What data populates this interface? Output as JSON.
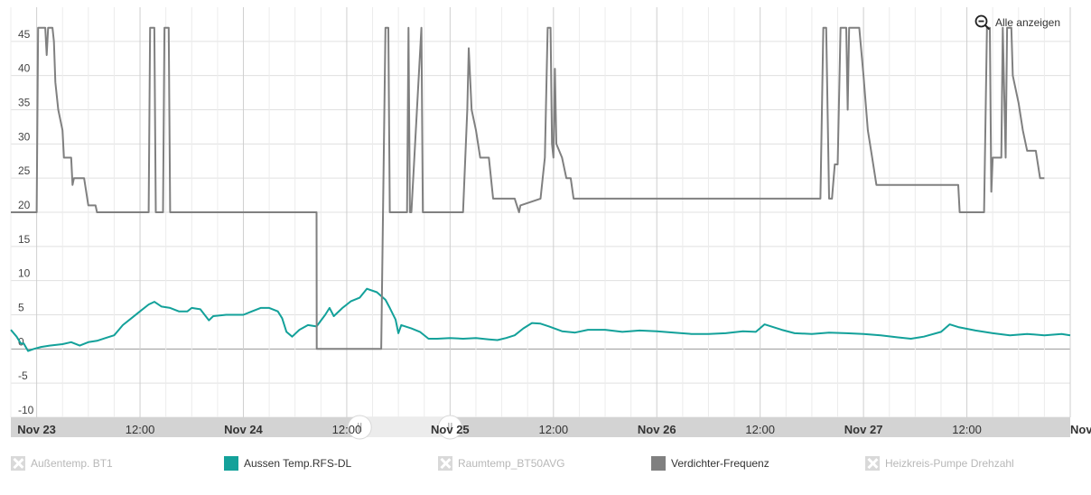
{
  "reset_zoom_label": "Alle anzeigen",
  "chart_data": {
    "type": "line",
    "title": "",
    "xlabel": "",
    "ylabel": "",
    "x_range": [
      "2022-11-22T21:00",
      "2022-11-28T00:00"
    ],
    "ylim": [
      -10,
      50
    ],
    "y_ticks": [
      -10,
      -5,
      0,
      5,
      10,
      15,
      20,
      25,
      30,
      35,
      40,
      45
    ],
    "y_tick_labels": [
      "-10",
      "-5",
      "0",
      "5",
      "10",
      "15",
      "20",
      "25",
      "30",
      "35",
      "40",
      "45"
    ],
    "x_ticks": [
      "2022-11-23T00:00",
      "2022-11-23T12:00",
      "2022-11-24T00:00",
      "2022-11-24T12:00",
      "2022-11-25T00:00",
      "2022-11-25T12:00",
      "2022-11-26T00:00",
      "2022-11-26T12:00",
      "2022-11-27T00:00",
      "2022-11-27T12:00",
      "2022-11-28T00:00"
    ],
    "x_tick_labels": [
      "Nov 23",
      "12:00",
      "Nov 24",
      "12:00",
      "Nov 25",
      "12:00",
      "Nov 26",
      "12:00",
      "Nov 27",
      "12:00",
      "Nov"
    ],
    "x_tick_bold": [
      true,
      false,
      true,
      false,
      true,
      false,
      true,
      false,
      true,
      false,
      true
    ],
    "grid": true,
    "legend_position": "bottom",
    "navigator_selection": [
      "2022-11-24T13:30",
      "2022-11-25T00:00"
    ],
    "series": [
      {
        "name": "Außentemp. BT1",
        "visible": false,
        "color": "#cccccc",
        "points": []
      },
      {
        "name": "Aussen Temp.RFS-DL",
        "visible": true,
        "color": "#13a19a",
        "points": [
          [
            "2022-11-22T21:00",
            2.8
          ],
          [
            "2022-11-22T21:40",
            1.8
          ],
          [
            "2022-11-22T22:10",
            0.8
          ],
          [
            "2022-11-22T22:30",
            0.8
          ],
          [
            "2022-11-22T23:00",
            -0.3
          ],
          [
            "2022-11-22T23:40",
            0.0
          ],
          [
            "2022-11-23T00:30",
            0.3
          ],
          [
            "2022-11-23T01:30",
            0.5
          ],
          [
            "2022-11-23T03:00",
            0.7
          ],
          [
            "2022-11-23T04:00",
            1.0
          ],
          [
            "2022-11-23T05:00",
            0.5
          ],
          [
            "2022-11-23T06:00",
            1.0
          ],
          [
            "2022-11-23T07:00",
            1.2
          ],
          [
            "2022-11-23T08:00",
            1.6
          ],
          [
            "2022-11-23T09:00",
            2.0
          ],
          [
            "2022-11-23T10:00",
            3.5
          ],
          [
            "2022-11-23T11:00",
            4.5
          ],
          [
            "2022-11-23T12:00",
            5.5
          ],
          [
            "2022-11-23T13:00",
            6.5
          ],
          [
            "2022-11-23T13:40",
            6.9
          ],
          [
            "2022-11-23T14:30",
            6.2
          ],
          [
            "2022-11-23T15:30",
            6.0
          ],
          [
            "2022-11-23T16:30",
            5.5
          ],
          [
            "2022-11-23T17:30",
            5.5
          ],
          [
            "2022-11-23T18:00",
            6.0
          ],
          [
            "2022-11-23T19:00",
            5.8
          ],
          [
            "2022-11-23T20:00",
            4.2
          ],
          [
            "2022-11-23T20:30",
            4.8
          ],
          [
            "2022-11-23T22:00",
            5.0
          ],
          [
            "2022-11-23T23:00",
            5.0
          ],
          [
            "2022-11-24T00:00",
            5.0
          ],
          [
            "2022-11-24T01:00",
            5.5
          ],
          [
            "2022-11-24T02:00",
            6.0
          ],
          [
            "2022-11-24T03:00",
            6.0
          ],
          [
            "2022-11-24T04:00",
            5.5
          ],
          [
            "2022-11-24T04:30",
            4.5
          ],
          [
            "2022-11-24T05:00",
            2.5
          ],
          [
            "2022-11-24T05:40",
            1.8
          ],
          [
            "2022-11-24T06:30",
            2.8
          ],
          [
            "2022-11-24T07:30",
            3.5
          ],
          [
            "2022-11-24T08:30",
            3.3
          ],
          [
            "2022-11-24T09:30",
            5.0
          ],
          [
            "2022-11-24T10:00",
            6.0
          ],
          [
            "2022-11-24T10:30",
            4.8
          ],
          [
            "2022-11-24T11:30",
            6.0
          ],
          [
            "2022-11-24T12:30",
            7.0
          ],
          [
            "2022-11-24T13:30",
            7.5
          ],
          [
            "2022-11-24T14:20",
            8.8
          ],
          [
            "2022-11-24T15:30",
            8.3
          ],
          [
            "2022-11-24T16:30",
            7.2
          ],
          [
            "2022-11-24T17:00",
            6.0
          ],
          [
            "2022-11-24T17:40",
            4.3
          ],
          [
            "2022-11-24T18:00",
            2.3
          ],
          [
            "2022-11-24T18:20",
            3.5
          ],
          [
            "2022-11-24T19:30",
            3.0
          ],
          [
            "2022-11-24T20:30",
            2.5
          ],
          [
            "2022-11-24T21:30",
            1.5
          ],
          [
            "2022-11-24T22:30",
            1.5
          ],
          [
            "2022-11-25T00:00",
            1.6
          ],
          [
            "2022-11-25T01:30",
            1.5
          ],
          [
            "2022-11-25T03:00",
            1.6
          ],
          [
            "2022-11-25T04:30",
            1.4
          ],
          [
            "2022-11-25T05:30",
            1.3
          ],
          [
            "2022-11-25T06:30",
            1.6
          ],
          [
            "2022-11-25T07:30",
            2.0
          ],
          [
            "2022-11-25T08:30",
            3.0
          ],
          [
            "2022-11-25T09:30",
            3.8
          ],
          [
            "2022-11-25T10:30",
            3.7
          ],
          [
            "2022-11-25T11:30",
            3.3
          ],
          [
            "2022-11-25T13:00",
            2.6
          ],
          [
            "2022-11-25T14:30",
            2.4
          ],
          [
            "2022-11-25T16:00",
            2.8
          ],
          [
            "2022-11-25T18:00",
            2.8
          ],
          [
            "2022-11-25T20:00",
            2.5
          ],
          [
            "2022-11-25T22:00",
            2.7
          ],
          [
            "2022-11-26T00:00",
            2.6
          ],
          [
            "2022-11-26T02:00",
            2.4
          ],
          [
            "2022-11-26T04:00",
            2.2
          ],
          [
            "2022-11-26T06:00",
            2.2
          ],
          [
            "2022-11-26T08:00",
            2.3
          ],
          [
            "2022-11-26T10:00",
            2.6
          ],
          [
            "2022-11-26T11:30",
            2.5
          ],
          [
            "2022-11-26T12:30",
            3.6
          ],
          [
            "2022-11-26T13:30",
            3.2
          ],
          [
            "2022-11-26T14:30",
            2.8
          ],
          [
            "2022-11-26T16:00",
            2.3
          ],
          [
            "2022-11-26T18:00",
            2.2
          ],
          [
            "2022-11-26T20:00",
            2.4
          ],
          [
            "2022-11-26T22:00",
            2.3
          ],
          [
            "2022-11-27T00:00",
            2.2
          ],
          [
            "2022-11-27T02:00",
            2.0
          ],
          [
            "2022-11-27T04:00",
            1.7
          ],
          [
            "2022-11-27T05:30",
            1.5
          ],
          [
            "2022-11-27T07:00",
            1.8
          ],
          [
            "2022-11-27T09:00",
            2.5
          ],
          [
            "2022-11-27T10:00",
            3.6
          ],
          [
            "2022-11-27T11:00",
            3.2
          ],
          [
            "2022-11-27T13:00",
            2.7
          ],
          [
            "2022-11-27T15:00",
            2.3
          ],
          [
            "2022-11-27T17:00",
            2.0
          ],
          [
            "2022-11-27T19:00",
            2.2
          ],
          [
            "2022-11-27T21:00",
            2.0
          ],
          [
            "2022-11-27T23:00",
            2.2
          ],
          [
            "2022-11-28T00:00",
            2.0
          ]
        ]
      },
      {
        "name": "Raumtemp_BT50AVG",
        "visible": false,
        "color": "#cccccc",
        "points": []
      },
      {
        "name": "Verdichter-Frequenz",
        "visible": true,
        "color": "#808080",
        "points": [
          [
            "2022-11-22T21:00",
            20
          ],
          [
            "2022-11-22T22:00",
            20
          ],
          [
            "2022-11-23T00:00",
            20
          ],
          [
            "2022-11-23T00:10",
            47
          ],
          [
            "2022-11-23T01:00",
            47
          ],
          [
            "2022-11-23T01:10",
            43
          ],
          [
            "2022-11-23T01:20",
            47
          ],
          [
            "2022-11-23T01:50",
            47
          ],
          [
            "2022-11-23T02:00",
            45
          ],
          [
            "2022-11-23T02:10",
            39
          ],
          [
            "2022-11-23T02:30",
            35
          ],
          [
            "2022-11-23T03:00",
            32
          ],
          [
            "2022-11-23T03:10",
            28
          ],
          [
            "2022-11-23T04:00",
            28
          ],
          [
            "2022-11-23T04:10",
            24
          ],
          [
            "2022-11-23T04:20",
            25
          ],
          [
            "2022-11-23T05:30",
            25
          ],
          [
            "2022-11-23T06:00",
            21
          ],
          [
            "2022-11-23T06:50",
            21
          ],
          [
            "2022-11-23T07:00",
            20
          ],
          [
            "2022-11-23T09:00",
            20
          ],
          [
            "2022-11-23T10:00",
            20
          ],
          [
            "2022-11-23T11:00",
            20
          ],
          [
            "2022-11-23T12:00",
            20
          ],
          [
            "2022-11-23T13:00",
            20
          ],
          [
            "2022-11-23T13:10",
            47
          ],
          [
            "2022-11-23T13:40",
            47
          ],
          [
            "2022-11-23T13:50",
            20
          ],
          [
            "2022-11-23T14:40",
            20
          ],
          [
            "2022-11-23T14:50",
            47
          ],
          [
            "2022-11-23T15:20",
            47
          ],
          [
            "2022-11-23T15:30",
            20
          ],
          [
            "2022-11-23T18:00",
            20
          ],
          [
            "2022-11-23T21:00",
            20
          ],
          [
            "2022-11-24T00:00",
            20
          ],
          [
            "2022-11-24T03:00",
            20
          ],
          [
            "2022-11-24T06:00",
            20
          ],
          [
            "2022-11-24T08:30",
            20
          ],
          [
            "2022-11-24T08:31",
            0
          ],
          [
            "2022-11-24T12:00",
            0
          ],
          [
            "2022-11-24T12:01",
            0
          ],
          [
            "2022-11-24T16:00",
            0
          ],
          [
            "2022-11-24T16:30",
            47
          ],
          [
            "2022-11-24T16:50",
            47
          ],
          [
            "2022-11-24T17:00",
            20
          ],
          [
            "2022-11-24T19:00",
            20
          ],
          [
            "2022-11-24T19:10",
            47
          ],
          [
            "2022-11-24T19:20",
            20
          ],
          [
            "2022-11-24T19:30",
            20
          ],
          [
            "2022-11-24T20:40",
            47
          ],
          [
            "2022-11-24T20:50",
            20
          ],
          [
            "2022-11-25T00:00",
            20
          ],
          [
            "2022-11-25T01:30",
            20
          ],
          [
            "2022-11-25T02:00",
            35
          ],
          [
            "2022-11-25T02:10",
            44
          ],
          [
            "2022-11-25T02:30",
            35
          ],
          [
            "2022-11-25T03:00",
            32
          ],
          [
            "2022-11-25T03:30",
            28
          ],
          [
            "2022-11-25T04:30",
            28
          ],
          [
            "2022-11-25T05:00",
            22
          ],
          [
            "2022-11-25T07:30",
            22
          ],
          [
            "2022-11-25T08:00",
            20
          ],
          [
            "2022-11-25T08:10",
            21
          ],
          [
            "2022-11-25T10:30",
            22
          ],
          [
            "2022-11-25T11:00",
            28
          ],
          [
            "2022-11-25T11:20",
            47
          ],
          [
            "2022-11-25T11:40",
            47
          ],
          [
            "2022-11-25T11:50",
            30
          ],
          [
            "2022-11-25T12:00",
            28
          ],
          [
            "2022-11-25T12:10",
            41
          ],
          [
            "2022-11-25T12:20",
            30
          ],
          [
            "2022-11-25T13:00",
            28
          ],
          [
            "2022-11-25T13:30",
            25
          ],
          [
            "2022-11-25T14:00",
            25
          ],
          [
            "2022-11-25T14:20",
            22
          ],
          [
            "2022-11-26T00:00",
            22
          ],
          [
            "2022-11-26T06:00",
            22
          ],
          [
            "2022-11-26T11:00",
            22
          ],
          [
            "2022-11-26T14:00",
            22
          ],
          [
            "2022-11-26T19:00",
            22
          ],
          [
            "2022-11-26T19:20",
            47
          ],
          [
            "2022-11-26T19:40",
            47
          ],
          [
            "2022-11-26T20:00",
            22
          ],
          [
            "2022-11-26T20:20",
            22
          ],
          [
            "2022-11-26T20:40",
            27
          ],
          [
            "2022-11-26T21:00",
            27
          ],
          [
            "2022-11-26T21:20",
            47
          ],
          [
            "2022-11-26T22:00",
            47
          ],
          [
            "2022-11-26T22:10",
            35
          ],
          [
            "2022-11-26T22:20",
            47
          ],
          [
            "2022-11-26T23:30",
            47
          ],
          [
            "2022-11-27T00:00",
            40
          ],
          [
            "2022-11-27T00:30",
            32
          ],
          [
            "2022-11-27T01:00",
            28
          ],
          [
            "2022-11-27T01:30",
            24
          ],
          [
            "2022-11-27T06:00",
            24
          ],
          [
            "2022-11-27T11:00",
            24
          ],
          [
            "2022-11-27T11:10",
            20
          ],
          [
            "2022-11-27T14:00",
            20
          ],
          [
            "2022-11-27T14:20",
            47
          ],
          [
            "2022-11-27T14:40",
            47
          ],
          [
            "2022-11-27T14:50",
            23
          ],
          [
            "2022-11-27T15:00",
            28
          ],
          [
            "2022-11-27T16:00",
            28
          ],
          [
            "2022-11-27T16:10",
            47
          ],
          [
            "2022-11-27T16:30",
            28
          ],
          [
            "2022-11-27T16:40",
            47
          ],
          [
            "2022-11-27T17:10",
            47
          ],
          [
            "2022-11-27T17:20",
            40
          ],
          [
            "2022-11-27T18:00",
            36
          ],
          [
            "2022-11-27T18:30",
            32
          ],
          [
            "2022-11-27T19:00",
            29
          ],
          [
            "2022-11-27T20:00",
            29
          ],
          [
            "2022-11-27T20:30",
            25
          ],
          [
            "2022-11-27T21:00",
            25
          ]
        ]
      },
      {
        "name": "Heizkreis-Pumpe Drehzahl",
        "visible": false,
        "color": "#cccccc",
        "points": []
      }
    ]
  }
}
